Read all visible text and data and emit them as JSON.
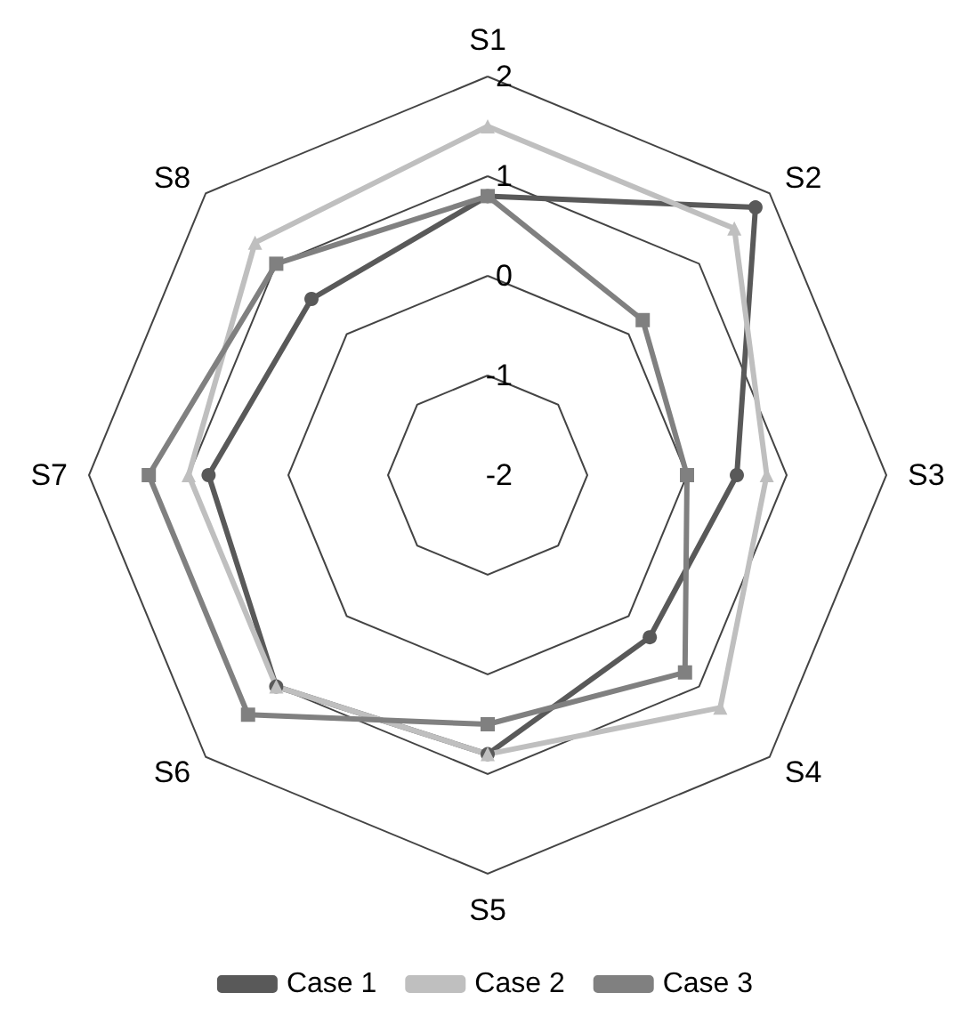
{
  "chart_data": {
    "type": "radar",
    "categories": [
      "S1",
      "S2",
      "S3",
      "S4",
      "S5",
      "S6",
      "S7",
      "S8"
    ],
    "series": [
      {
        "name": "Case 1",
        "color": "#595959",
        "marker": "circle",
        "values": [
          0.8,
          1.8,
          0.5,
          0.3,
          0.8,
          1.0,
          0.8,
          0.5
        ]
      },
      {
        "name": "Case 2",
        "color": "#bfbfbf",
        "marker": "triangle",
        "values": [
          1.5,
          1.5,
          0.8,
          1.3,
          0.8,
          1.0,
          1.0,
          1.3
        ]
      },
      {
        "name": "Case 3",
        "color": "#808080",
        "marker": "square",
        "values": [
          0.8,
          0.2,
          0.0,
          0.8,
          0.5,
          1.4,
          1.4,
          1.0
        ]
      }
    ],
    "ylim": [
      -2,
      2
    ],
    "yticks": [
      -2,
      -1,
      0,
      1,
      2
    ],
    "legend": "bottom"
  }
}
